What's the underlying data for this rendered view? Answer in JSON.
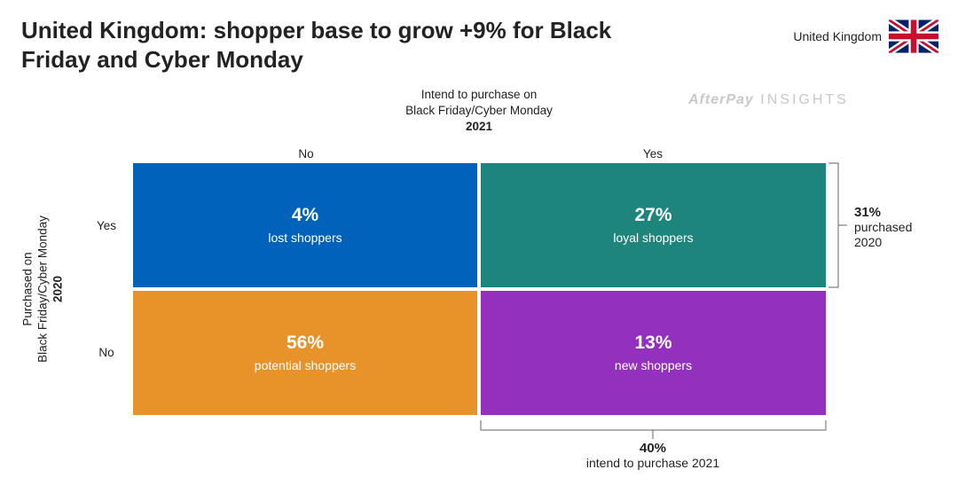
{
  "header": {
    "title": "United Kingdom: shopper base to grow +9% for Black Friday and Cyber Monday",
    "country": "United Kingdom",
    "flag_icon": "uk-flag-icon",
    "brand_logo": "AfterPay",
    "brand_suffix": "INSIGHTS"
  },
  "chart_data": {
    "type": "table",
    "column_header": {
      "line1": "Intend to purchase on",
      "line2": "Black Friday/Cyber Monday",
      "year": "2021",
      "categories": [
        "No",
        "Yes"
      ]
    },
    "row_header": {
      "line1": "Purchased on",
      "line2": "Black Friday/Cyber Monday",
      "year": "2020",
      "categories": [
        "Yes",
        "No"
      ]
    },
    "cells": [
      {
        "row": "Yes",
        "col": "No",
        "pct": "4%",
        "value": 4,
        "label": "lost shoppers",
        "color": "#0062bb"
      },
      {
        "row": "Yes",
        "col": "Yes",
        "pct": "27%",
        "value": 27,
        "label": "loyal shoppers",
        "color": "#1e857c"
      },
      {
        "row": "No",
        "col": "No",
        "pct": "56%",
        "value": 56,
        "label": "potential shoppers",
        "color": "#e8922a"
      },
      {
        "row": "No",
        "col": "Yes",
        "pct": "13%",
        "value": 13,
        "label": "new shoppers",
        "color": "#9330bd"
      }
    ],
    "row_summary": {
      "pct": "31%",
      "value": 31,
      "line1": "purchased",
      "line2": "2020"
    },
    "col_summary": {
      "pct": "40%",
      "value": 40,
      "label": "intend to purchase 2021"
    }
  }
}
